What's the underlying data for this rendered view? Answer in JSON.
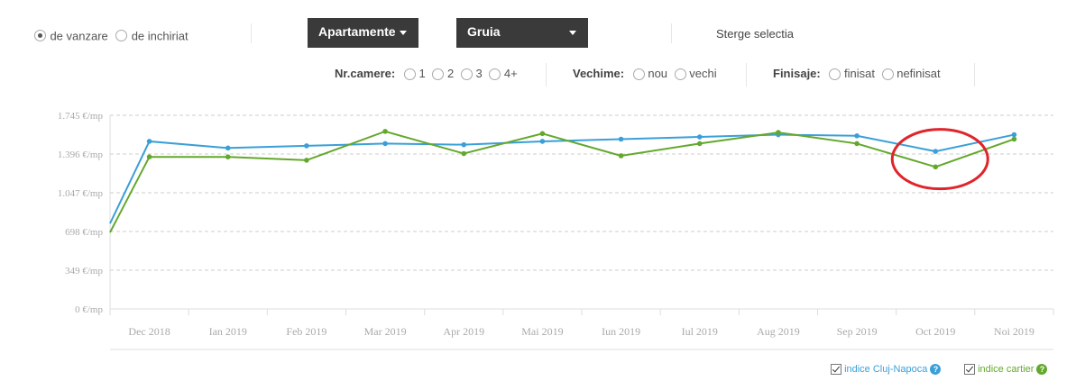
{
  "filters": {
    "transaction": {
      "options": [
        "de vanzare",
        "de inchiriat"
      ],
      "selected": "de vanzare"
    },
    "property_type": "Apartamente",
    "zone": "Gruia",
    "clear_label": "Sterge selectia",
    "rooms": {
      "label": "Nr.camere:",
      "options": [
        "1",
        "2",
        "3",
        "4+"
      ]
    },
    "age": {
      "label": "Vechime:",
      "options": [
        "nou",
        "vechi"
      ]
    },
    "finish": {
      "label": "Finisaje:",
      "options": [
        "finisat",
        "nefinisat"
      ]
    }
  },
  "legend": {
    "city": {
      "label": "indice Cluj-Napoca",
      "checked": true
    },
    "area": {
      "label": "indice cartier",
      "checked": true
    }
  },
  "colors": {
    "city": "#3a9fd8",
    "area": "#63a82c",
    "grid": "#cccccc",
    "highlight": "#e0242b",
    "dropdown": "#3a3a3a"
  },
  "icons": [
    "caret-down-icon",
    "help-icon",
    "checkbox-checked-icon"
  ],
  "chart_data": {
    "type": "line",
    "categories": [
      "Dec 2018",
      "Ian 2019",
      "Feb 2019",
      "Mar 2019",
      "Apr 2019",
      "Mai 2019",
      "Iun 2019",
      "Iul 2019",
      "Aug 2019",
      "Sep 2019",
      "Oct 2019",
      "Noi 2019"
    ],
    "y_ticks": [
      "0 €/mp",
      "349 €/mp",
      "698 €/mp",
      "1.047 €/mp",
      "1.396 €/mp",
      "1.745 €/mp"
    ],
    "y_tick_values": [
      0,
      349,
      698,
      1047,
      1396,
      1745
    ],
    "ylim": [
      0,
      1745
    ],
    "grid": true,
    "series": [
      {
        "name": "indice Cluj-Napoca",
        "key": "city",
        "start": 770,
        "values": [
          1510,
          1450,
          1470,
          1490,
          1480,
          1510,
          1530,
          1550,
          1570,
          1560,
          1420,
          1570
        ]
      },
      {
        "name": "indice cartier",
        "key": "area",
        "start": 690,
        "values": [
          1370,
          1370,
          1340,
          1600,
          1400,
          1580,
          1380,
          1490,
          1590,
          1490,
          1280,
          1530
        ]
      }
    ],
    "annotation": {
      "type": "ellipse",
      "category": "Oct 2019",
      "color": "#e0242b"
    }
  }
}
